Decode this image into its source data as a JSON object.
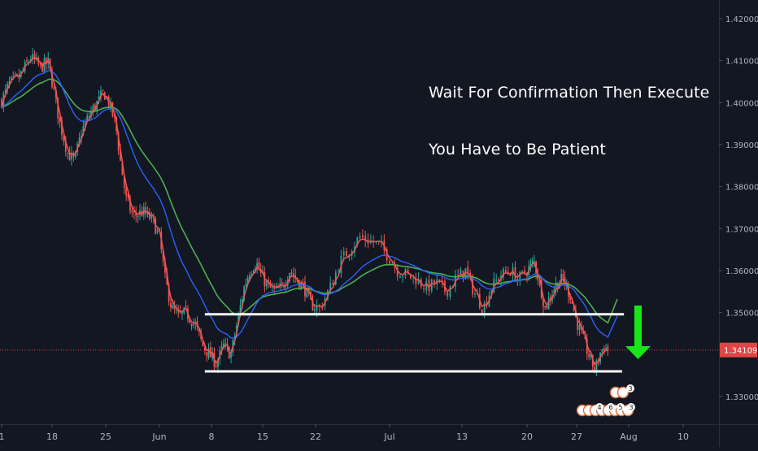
{
  "colors": {
    "background": "#131722",
    "up_candle": "#26a69a",
    "down_candle": "#ef5350",
    "ema_fast": "#f05454",
    "ma_mid": "#2962ff",
    "ma_slow": "#4caf50",
    "level_line": "#ffffff",
    "price_marker": "#e04444",
    "arrow": "#19e619",
    "axis_text": "#b2b5be"
  },
  "annotations": [
    "Wait For Confirmation Then Execute",
    "You Have to Be Patient"
  ],
  "current_price_label": "1.34109",
  "event_badges": [
    "3",
    "4",
    "6",
    "5",
    "3"
  ],
  "chart_data": {
    "type": "candlestick",
    "x_tick_labels": [
      "1",
      "18",
      "25",
      "Jun",
      "8",
      "15",
      "22",
      "Jul",
      "13",
      "20",
      "27",
      "Aug",
      "10"
    ],
    "x_tick_bars": [
      0,
      52,
      107,
      162,
      217,
      272,
      327,
      382,
      437,
      492,
      547,
      602,
      657
    ],
    "y_tick_labels": [
      "1.42000",
      "1.41000",
      "1.40000",
      "1.39000",
      "1.38000",
      "1.37000",
      "1.36000",
      "1.35000",
      "1.33000"
    ],
    "y_tick_values": [
      1.42,
      1.41,
      1.4,
      1.39,
      1.38,
      1.37,
      1.36,
      1.35,
      1.33
    ],
    "ylim": [
      1.3205,
      1.4237
    ],
    "current_price": 1.34109,
    "support_line": {
      "value": 1.336,
      "from_bar": 210,
      "to_bar": 595
    },
    "resistance_line": {
      "value": 1.3496,
      "from_bar": 210,
      "to_bar": 597
    },
    "trend_anchors": [
      [
        0,
        1.4005
      ],
      [
        8,
        1.4045
      ],
      [
        18,
        1.406
      ],
      [
        30,
        1.4108
      ],
      [
        40,
        1.4085
      ],
      [
        48,
        1.4095
      ],
      [
        52,
        1.405
      ],
      [
        60,
        1.395
      ],
      [
        68,
        1.388
      ],
      [
        75,
        1.386
      ],
      [
        82,
        1.393
      ],
      [
        88,
        1.396
      ],
      [
        95,
        1.399
      ],
      [
        100,
        1.4005
      ],
      [
        105,
        1.4025
      ],
      [
        110,
        1.4
      ],
      [
        117,
        1.395
      ],
      [
        122,
        1.386
      ],
      [
        128,
        1.377
      ],
      [
        135,
        1.373
      ],
      [
        145,
        1.374
      ],
      [
        155,
        1.372
      ],
      [
        162,
        1.368
      ],
      [
        168,
        1.358
      ],
      [
        175,
        1.351
      ],
      [
        182,
        1.349
      ],
      [
        190,
        1.35
      ],
      [
        200,
        1.347
      ],
      [
        208,
        1.342
      ],
      [
        215,
        1.34
      ],
      [
        222,
        1.338
      ],
      [
        230,
        1.342
      ],
      [
        238,
        1.34
      ],
      [
        245,
        1.348
      ],
      [
        252,
        1.356
      ],
      [
        258,
        1.36
      ],
      [
        265,
        1.362
      ],
      [
        270,
        1.359
      ],
      [
        278,
        1.356
      ],
      [
        285,
        1.355
      ],
      [
        292,
        1.356
      ],
      [
        300,
        1.36
      ],
      [
        307,
        1.358
      ],
      [
        315,
        1.356
      ],
      [
        322,
        1.352
      ],
      [
        330,
        1.351
      ],
      [
        338,
        1.356
      ],
      [
        345,
        1.362
      ],
      [
        352,
        1.365
      ],
      [
        360,
        1.368
      ],
      [
        368,
        1.367
      ],
      [
        375,
        1.366
      ],
      [
        382,
        1.363
      ],
      [
        388,
        1.36
      ],
      [
        395,
        1.359
      ],
      [
        402,
        1.358
      ],
      [
        410,
        1.356
      ],
      [
        418,
        1.357
      ],
      [
        425,
        1.355
      ],
      [
        432,
        1.358
      ],
      [
        440,
        1.36
      ],
      [
        447,
        1.355
      ],
      [
        455,
        1.351
      ],
      [
        462,
        1.356
      ],
      [
        470,
        1.359
      ],
      [
        478,
        1.36
      ],
      [
        485,
        1.358
      ],
      [
        492,
        1.36
      ],
      [
        500,
        1.362
      ],
      [
        507,
        1.356
      ],
      [
        512,
        1.351
      ],
      [
        518,
        1.354
      ],
      [
        525,
        1.357
      ],
      [
        532,
        1.358
      ],
      [
        540,
        1.354
      ],
      [
        547,
        1.348
      ],
      [
        553,
        1.344
      ],
      [
        558,
        1.341
      ],
      [
        563,
        1.338
      ],
      [
        567,
        1.3365
      ],
      [
        571,
        1.34
      ],
      [
        576,
        1.342
      ],
      [
        580,
        1.341
      ]
    ]
  }
}
